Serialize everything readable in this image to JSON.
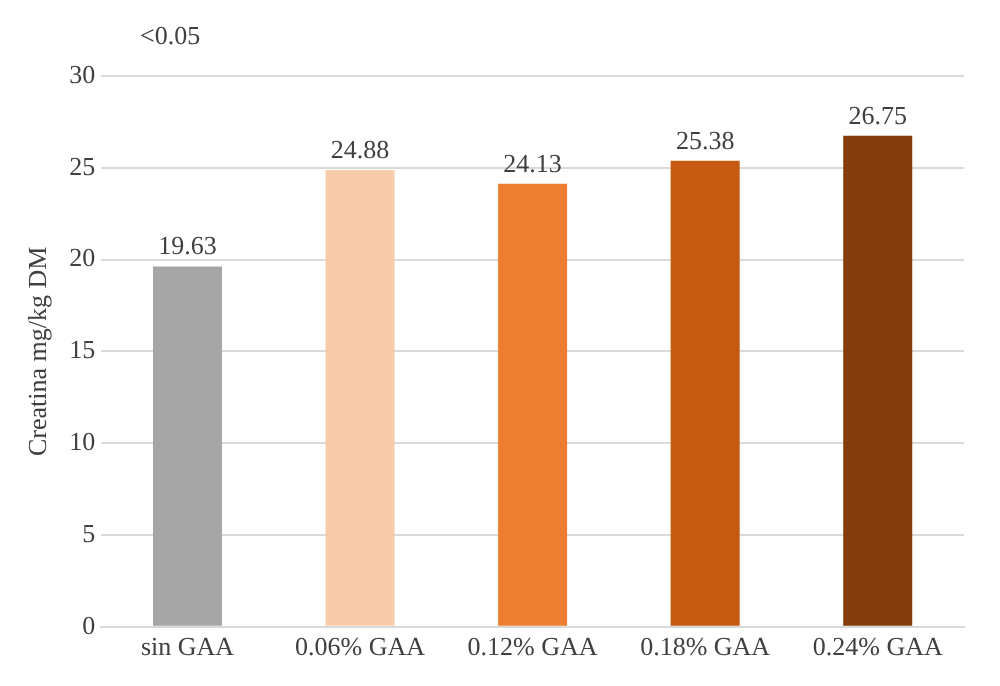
{
  "chart_data": {
    "type": "bar",
    "ylabel": "Creatina mg/kg DM",
    "categories": [
      "sin GAA",
      "0.06% GAA",
      "0.12% GAA",
      "0.18% GAA",
      "0.24% GAA"
    ],
    "values": [
      19.63,
      24.88,
      24.13,
      25.38,
      26.75
    ],
    "colors": [
      "#a5a5a5",
      "#f8cbad",
      "#ed7d31",
      "#c55a11",
      "#843c0c"
    ],
    "ylim": [
      0,
      30
    ],
    "yticks": [
      0,
      5,
      10,
      15,
      20,
      25,
      30
    ],
    "grid": "y",
    "data_labels": true,
    "annotations": [
      "<0.05"
    ]
  }
}
